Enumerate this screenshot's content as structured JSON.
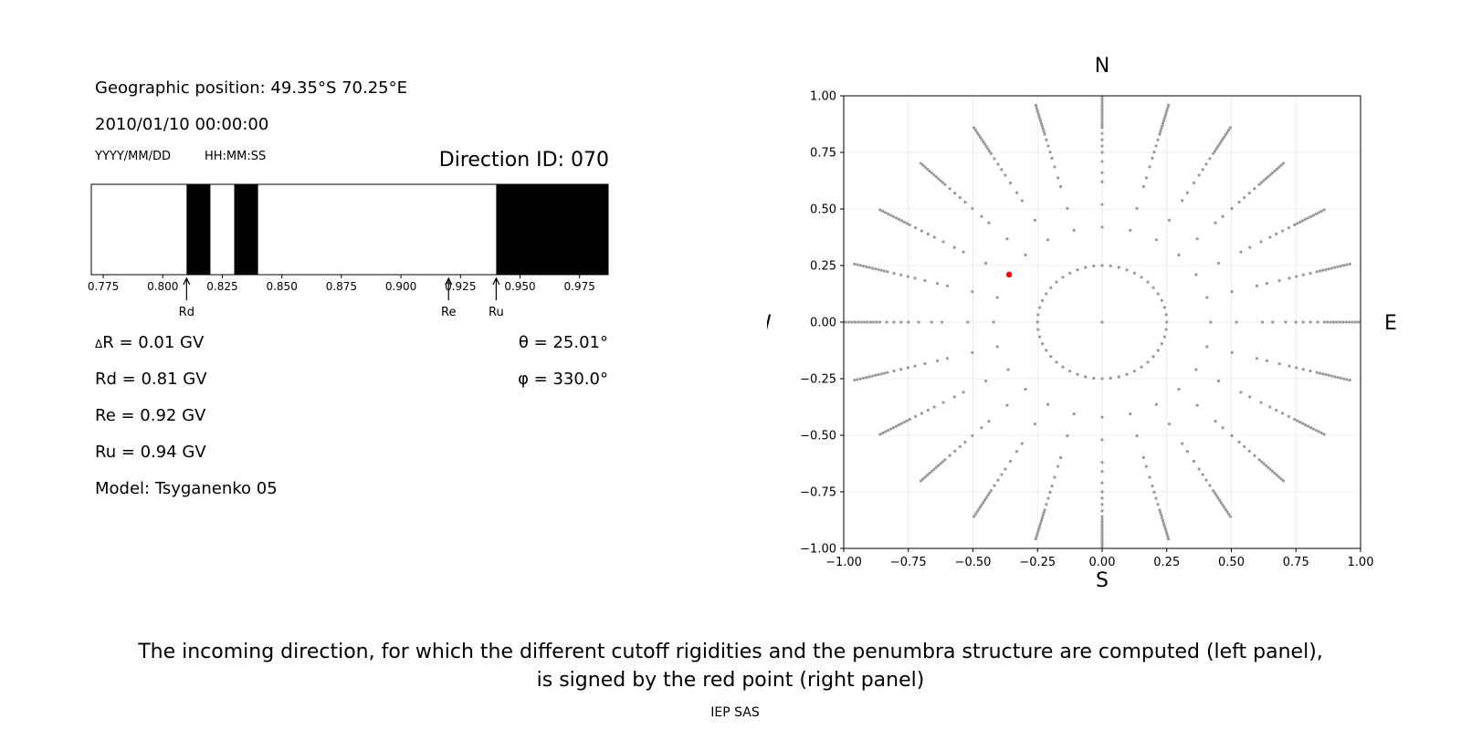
{
  "left_panel": {
    "geo_position": "Geographic position: 49.35°S 70.25°E",
    "datetime": "2010/01/10 00:00:00",
    "date_format": "YYYY/MM/DD",
    "time_format": "HH:MM:SS",
    "direction_id": "Direction ID: 070",
    "delta_r": "R = 0.01 GV",
    "delta_symbol": "Δ",
    "rd": "Rd = 0.81 GV",
    "re": "Re = 0.92 GV",
    "ru": "Ru = 0.94 GV",
    "model": "Model: Tsyganenko 05",
    "theta": "θ = 25.01°",
    "phi": "φ = 330.0°"
  },
  "right_panel": {
    "north": "N",
    "south": "S",
    "west": "W",
    "east": "E"
  },
  "caption": {
    "line1": "The incoming direction, for which the different cutoff rigidities and the penumbra structure are computed (left panel),",
    "line2": "is signed by the red point (right panel)",
    "credit": "IEP SAS"
  },
  "chart_data": [
    {
      "type": "bar",
      "name": "penumbra",
      "xlim": [
        0.77,
        0.987
      ],
      "xticks": [
        "0.775",
        "0.800",
        "0.825",
        "0.850",
        "0.875",
        "0.900",
        "0.925",
        "0.950",
        "0.975"
      ],
      "forbidden_bands": [
        [
          0.81,
          0.82
        ],
        [
          0.83,
          0.84
        ],
        [
          0.94,
          0.987
        ]
      ],
      "markers": [
        {
          "label": "Rd",
          "value": 0.81
        },
        {
          "label": "Re",
          "value": 0.92
        },
        {
          "label": "Ru",
          "value": 0.94
        }
      ],
      "colors": {
        "forbidden": "#000000",
        "allowed": "#ffffff"
      }
    },
    {
      "type": "scatter",
      "name": "directions",
      "xlim": [
        -1,
        1
      ],
      "ylim": [
        -1,
        1
      ],
      "xticks": [
        "−1.00",
        "−0.75",
        "−0.50",
        "−0.25",
        "0.00",
        "0.25",
        "0.50",
        "0.75",
        "1.00"
      ],
      "yticks": [
        "1.00",
        "0.75",
        "0.50",
        "0.25",
        "0.00",
        "−0.25",
        "−0.50",
        "−0.75",
        "−1.00"
      ],
      "grid": true,
      "ring_radius": 0.25,
      "spokes": 24,
      "highlight": {
        "x": -0.36,
        "y": 0.21
      },
      "colors": {
        "points": "#999999",
        "highlight": "#ff0000"
      }
    }
  ]
}
